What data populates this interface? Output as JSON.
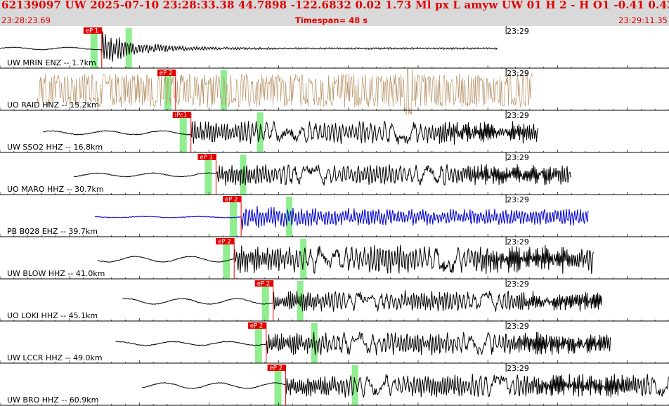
{
  "header": {
    "summary": "62139097 UW 2025-07-10 23:28:33.38   44.7898 -122.6832   0.02  1.73 Ml  px  L amyw     UW 01  H   2  -  H O1   -0.41  0.43",
    "start_time": "23:28:23.69",
    "timespan": "Timespan=  48 s",
    "end_time": "23:29:11.35"
  },
  "minute_marker": "23:29",
  "colors": {
    "pick": "#e00000",
    "window": "#90ee90",
    "default_trace": "#000000"
  },
  "traces": [
    {
      "label": "UW MRIN ENZ -- 1.7km",
      "color": "#000000",
      "pick": "eP 1",
      "style": "spike",
      "start_s": 0.0,
      "onset_s": 7.3,
      "end_s": 35.7,
      "pre_amp": 0.06,
      "post_amp": 0.9
    },
    {
      "label": "UO RAID HNZ -- 15.2km",
      "color": "#b8956a",
      "pick": "eP 2",
      "style": "noise",
      "start_s": 2.6,
      "onset_s": 12.6,
      "end_s": 38.2,
      "pre_amp": 0.62,
      "post_amp": 0.62
    },
    {
      "label": "UW SSO2 HHZ -- 16.8km",
      "color": "#000000",
      "pick": "iPc1",
      "style": "wave",
      "start_s": 3.1,
      "onset_s": 13.7,
      "end_s": 38.6,
      "pre_amp": 0.1,
      "post_amp": 0.6
    },
    {
      "label": "UO MARO HHZ -- 30.7km",
      "color": "#000000",
      "pick": "eP 1",
      "style": "wave",
      "start_s": 5.3,
      "onset_s": 15.5,
      "end_s": 41.0,
      "pre_amp": 0.1,
      "post_amp": 0.55
    },
    {
      "label": "PB B028 EHZ -- 39.7km",
      "color": "#0000cc",
      "pick": "eP 2",
      "style": "blue",
      "start_s": 6.8,
      "onset_s": 17.3,
      "end_s": 42.2,
      "pre_amp": 0.03,
      "post_amp": 0.7
    },
    {
      "label": "UW BLOW HHZ -- 41.0km",
      "color": "#000000",
      "pick": "eP 2",
      "style": "wave",
      "start_s": 7.0,
      "onset_s": 16.8,
      "end_s": 42.6,
      "pre_amp": 0.15,
      "post_amp": 0.75
    },
    {
      "label": "UO LOKI HHZ -- 45.1km",
      "color": "#000000",
      "pick": "eP 2",
      "style": "wave",
      "start_s": 8.8,
      "onset_s": 19.6,
      "end_s": 43.2,
      "pre_amp": 0.15,
      "post_amp": 0.55
    },
    {
      "label": "UW LCCR HHZ -- 49.0km",
      "color": "#000000",
      "pick": "eP 2",
      "style": "wave",
      "start_s": 8.3,
      "onset_s": 19.1,
      "end_s": 43.8,
      "pre_amp": 0.1,
      "post_amp": 0.6
    },
    {
      "label": "UW BRO HHZ -- 60.9km",
      "color": "#000000",
      "pick": "eP 2",
      "style": "wave",
      "start_s": 10.2,
      "onset_s": 20.5,
      "end_s": 48.0,
      "pre_amp": 0.15,
      "post_amp": 0.6
    }
  ]
}
